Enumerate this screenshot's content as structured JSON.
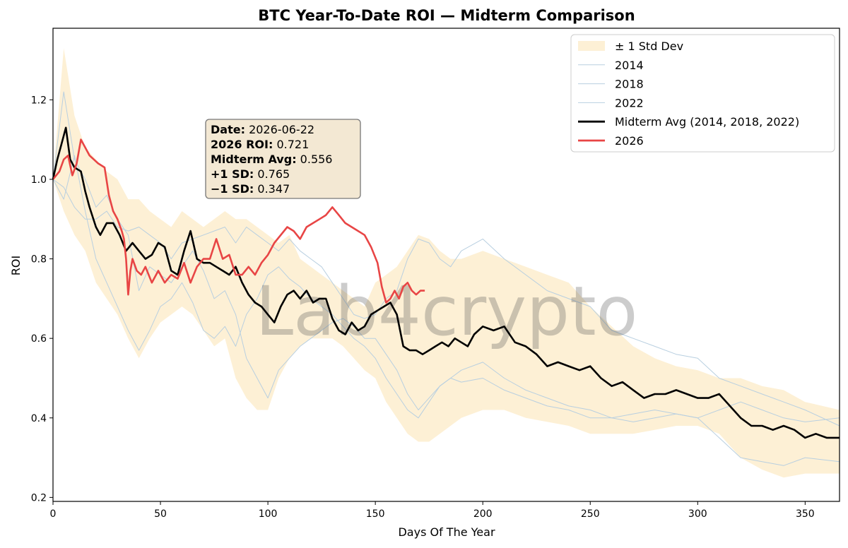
{
  "chart_data": {
    "type": "line",
    "title": "BTC Year-To-Date ROI — Midterm Comparison",
    "xlabel": "Days Of The Year",
    "ylabel": "ROI",
    "xlim": [
      0,
      366
    ],
    "ylim": [
      0.19,
      1.38
    ],
    "x_ticks": [
      0,
      50,
      100,
      150,
      200,
      250,
      300,
      350
    ],
    "y_ticks": [
      0.2,
      0.4,
      0.6,
      0.8,
      1.0,
      1.2
    ],
    "grid": false,
    "legend_position": "top-right",
    "watermark": "Lab4crypto",
    "colors": {
      "band": "#fdf0d5",
      "thin_lines": "#b8cfe0",
      "avg": "#000000",
      "current": "#e84545",
      "tooltip_bg": "#f3e8d3"
    },
    "legend": [
      {
        "label": "± 1 Std Dev",
        "kind": "band"
      },
      {
        "label": "2014",
        "kind": "thin"
      },
      {
        "label": "2018",
        "kind": "thin"
      },
      {
        "label": "2022",
        "kind": "thin"
      },
      {
        "label": "Midterm Avg (2014, 2018, 2022)",
        "kind": "avg"
      },
      {
        "label": "2026",
        "kind": "current"
      }
    ],
    "tooltip": [
      {
        "key": "Date",
        "value": "2026-06-22"
      },
      {
        "key": "2026 ROI",
        "value": "0.721"
      },
      {
        "key": "Midterm Avg",
        "value": "0.556"
      },
      {
        "key": "+1 SD",
        "value": "0.765"
      },
      {
        "key": "−1 SD",
        "value": "0.347"
      }
    ],
    "series": [
      {
        "name": "Midterm Avg (2014, 2018, 2022)",
        "x": [
          0,
          2,
          4,
          6,
          8,
          10,
          13,
          15,
          17,
          20,
          22,
          25,
          28,
          31,
          34,
          37,
          40,
          43,
          46,
          49,
          52,
          55,
          58,
          61,
          64,
          67,
          70,
          73,
          76,
          79,
          82,
          85,
          88,
          91,
          94,
          97,
          100,
          103,
          106,
          109,
          112,
          115,
          118,
          121,
          124,
          127,
          130,
          133,
          136,
          139,
          142,
          145,
          148,
          151,
          154,
          157,
          160,
          163,
          166,
          169,
          172,
          175,
          178,
          181,
          184,
          187,
          190,
          193,
          196,
          200,
          205,
          210,
          215,
          220,
          225,
          230,
          235,
          240,
          245,
          250,
          255,
          260,
          265,
          270,
          275,
          280,
          285,
          290,
          295,
          300,
          305,
          310,
          315,
          320,
          325,
          330,
          335,
          340,
          345,
          350,
          355,
          360,
          366
        ],
        "y": [
          1.0,
          1.05,
          1.09,
          1.13,
          1.05,
          1.03,
          1.02,
          0.97,
          0.93,
          0.88,
          0.86,
          0.89,
          0.89,
          0.86,
          0.82,
          0.84,
          0.82,
          0.8,
          0.81,
          0.84,
          0.83,
          0.77,
          0.76,
          0.82,
          0.87,
          0.8,
          0.79,
          0.79,
          0.78,
          0.77,
          0.76,
          0.78,
          0.74,
          0.71,
          0.69,
          0.68,
          0.66,
          0.64,
          0.68,
          0.71,
          0.72,
          0.7,
          0.72,
          0.69,
          0.7,
          0.7,
          0.65,
          0.62,
          0.61,
          0.64,
          0.62,
          0.63,
          0.66,
          0.67,
          0.68,
          0.69,
          0.66,
          0.58,
          0.57,
          0.57,
          0.56,
          0.57,
          0.58,
          0.59,
          0.58,
          0.6,
          0.59,
          0.58,
          0.61,
          0.63,
          0.62,
          0.63,
          0.59,
          0.58,
          0.56,
          0.53,
          0.54,
          0.53,
          0.52,
          0.53,
          0.5,
          0.48,
          0.49,
          0.47,
          0.45,
          0.46,
          0.46,
          0.47,
          0.46,
          0.45,
          0.45,
          0.46,
          0.43,
          0.4,
          0.38,
          0.38,
          0.37,
          0.38,
          0.37,
          0.35,
          0.36,
          0.35,
          0.35
        ]
      },
      {
        "name": "2026",
        "x": [
          0,
          3,
          5,
          7,
          9,
          11,
          13,
          15,
          17,
          19,
          21,
          24,
          26,
          28,
          30,
          32,
          33,
          34,
          35,
          36,
          37,
          39,
          41,
          43,
          46,
          49,
          52,
          55,
          58,
          61,
          64,
          67,
          70,
          73,
          76,
          79,
          82,
          85,
          88,
          91,
          94,
          97,
          100,
          103,
          106,
          109,
          112,
          115,
          118,
          121,
          124,
          127,
          130,
          133,
          136,
          139,
          142,
          145,
          148,
          151,
          153,
          155,
          157,
          159,
          161,
          163,
          165,
          167,
          169,
          171,
          173
        ],
        "y": [
          1.0,
          1.02,
          1.05,
          1.06,
          1.01,
          1.04,
          1.1,
          1.08,
          1.06,
          1.05,
          1.04,
          1.03,
          0.96,
          0.92,
          0.9,
          0.87,
          0.85,
          0.8,
          0.71,
          0.77,
          0.8,
          0.77,
          0.76,
          0.78,
          0.74,
          0.77,
          0.74,
          0.76,
          0.75,
          0.79,
          0.74,
          0.78,
          0.8,
          0.8,
          0.85,
          0.8,
          0.81,
          0.76,
          0.76,
          0.78,
          0.76,
          0.79,
          0.81,
          0.84,
          0.86,
          0.88,
          0.87,
          0.85,
          0.88,
          0.89,
          0.9,
          0.91,
          0.93,
          0.91,
          0.89,
          0.88,
          0.87,
          0.86,
          0.83,
          0.79,
          0.73,
          0.69,
          0.7,
          0.72,
          0.7,
          0.73,
          0.74,
          0.72,
          0.71,
          0.72,
          0.72
        ]
      },
      {
        "name": "2014",
        "x": [
          0,
          5,
          10,
          15,
          20,
          25,
          30,
          35,
          40,
          45,
          50,
          55,
          60,
          65,
          70,
          75,
          80,
          85,
          90,
          95,
          100,
          105,
          110,
          115,
          120,
          125,
          130,
          135,
          140,
          145,
          150,
          155,
          160,
          165,
          170,
          175,
          180,
          185,
          190,
          200,
          210,
          220,
          230,
          240,
          250,
          260,
          270,
          280,
          290,
          300,
          310,
          320,
          330,
          340,
          350,
          366
        ],
        "y": [
          1.0,
          1.22,
          1.05,
          1.0,
          0.93,
          0.96,
          0.9,
          0.86,
          0.72,
          0.78,
          0.76,
          0.74,
          0.78,
          0.82,
          0.77,
          0.7,
          0.72,
          0.66,
          0.55,
          0.5,
          0.45,
          0.52,
          0.55,
          0.58,
          0.6,
          0.62,
          0.64,
          0.65,
          0.63,
          0.6,
          0.6,
          0.56,
          0.52,
          0.46,
          0.42,
          0.45,
          0.48,
          0.5,
          0.49,
          0.5,
          0.47,
          0.45,
          0.43,
          0.42,
          0.4,
          0.4,
          0.39,
          0.4,
          0.41,
          0.4,
          0.42,
          0.44,
          0.42,
          0.4,
          0.39,
          0.4
        ]
      },
      {
        "name": "2018",
        "x": [
          0,
          5,
          10,
          15,
          20,
          25,
          30,
          35,
          40,
          45,
          50,
          55,
          60,
          65,
          70,
          75,
          80,
          85,
          90,
          95,
          100,
          105,
          110,
          115,
          120,
          125,
          130,
          135,
          140,
          145,
          150,
          155,
          160,
          165,
          170,
          175,
          180,
          185,
          190,
          200,
          210,
          220,
          230,
          240,
          250,
          260,
          270,
          280,
          290,
          300,
          310,
          320,
          330,
          340,
          350,
          366
        ],
        "y": [
          1.0,
          0.95,
          1.06,
          0.92,
          0.8,
          0.74,
          0.68,
          0.62,
          0.57,
          0.62,
          0.68,
          0.7,
          0.74,
          0.69,
          0.62,
          0.6,
          0.63,
          0.58,
          0.66,
          0.7,
          0.76,
          0.78,
          0.75,
          0.73,
          0.7,
          0.68,
          0.66,
          0.63,
          0.6,
          0.58,
          0.55,
          0.5,
          0.46,
          0.42,
          0.4,
          0.44,
          0.48,
          0.5,
          0.52,
          0.54,
          0.5,
          0.47,
          0.45,
          0.43,
          0.42,
          0.4,
          0.41,
          0.42,
          0.41,
          0.4,
          0.35,
          0.3,
          0.29,
          0.28,
          0.3,
          0.29
        ]
      },
      {
        "name": "2022",
        "x": [
          0,
          5,
          10,
          15,
          20,
          25,
          30,
          35,
          40,
          45,
          50,
          55,
          60,
          65,
          70,
          75,
          80,
          85,
          90,
          95,
          100,
          105,
          110,
          115,
          120,
          125,
          130,
          135,
          140,
          145,
          150,
          155,
          160,
          165,
          170,
          175,
          180,
          185,
          190,
          200,
          210,
          220,
          230,
          240,
          250,
          260,
          270,
          280,
          290,
          300,
          310,
          320,
          330,
          340,
          350,
          366
        ],
        "y": [
          1.0,
          0.98,
          0.93,
          0.9,
          0.9,
          0.92,
          0.88,
          0.87,
          0.88,
          0.86,
          0.84,
          0.8,
          0.84,
          0.85,
          0.86,
          0.87,
          0.88,
          0.84,
          0.88,
          0.86,
          0.84,
          0.82,
          0.85,
          0.82,
          0.8,
          0.78,
          0.74,
          0.7,
          0.66,
          0.65,
          0.66,
          0.7,
          0.72,
          0.8,
          0.85,
          0.84,
          0.8,
          0.78,
          0.82,
          0.85,
          0.8,
          0.76,
          0.72,
          0.7,
          0.68,
          0.62,
          0.6,
          0.58,
          0.56,
          0.55,
          0.5,
          0.48,
          0.46,
          0.44,
          0.42,
          0.38
        ]
      }
    ],
    "band": {
      "x": [
        0,
        5,
        10,
        15,
        20,
        25,
        30,
        35,
        40,
        45,
        50,
        55,
        60,
        65,
        70,
        75,
        80,
        85,
        90,
        95,
        100,
        105,
        110,
        115,
        120,
        125,
        130,
        135,
        140,
        145,
        150,
        155,
        160,
        165,
        170,
        175,
        180,
        185,
        190,
        200,
        210,
        220,
        230,
        240,
        250,
        260,
        270,
        280,
        290,
        300,
        310,
        320,
        330,
        340,
        350,
        366
      ],
      "upper": [
        1.0,
        1.33,
        1.16,
        1.08,
        1.05,
        1.02,
        1.0,
        0.95,
        0.95,
        0.92,
        0.9,
        0.88,
        0.92,
        0.9,
        0.88,
        0.9,
        0.92,
        0.9,
        0.9,
        0.88,
        0.86,
        0.84,
        0.86,
        0.8,
        0.78,
        0.76,
        0.74,
        0.72,
        0.7,
        0.68,
        0.74,
        0.76,
        0.78,
        0.82,
        0.86,
        0.85,
        0.82,
        0.8,
        0.8,
        0.82,
        0.8,
        0.78,
        0.76,
        0.74,
        0.68,
        0.63,
        0.58,
        0.55,
        0.53,
        0.52,
        0.5,
        0.5,
        0.48,
        0.47,
        0.44,
        0.42
      ],
      "lower": [
        1.0,
        0.92,
        0.86,
        0.82,
        0.74,
        0.7,
        0.66,
        0.6,
        0.55,
        0.6,
        0.64,
        0.66,
        0.68,
        0.66,
        0.62,
        0.58,
        0.6,
        0.5,
        0.45,
        0.42,
        0.42,
        0.5,
        0.55,
        0.58,
        0.6,
        0.6,
        0.6,
        0.58,
        0.55,
        0.52,
        0.5,
        0.44,
        0.4,
        0.36,
        0.34,
        0.34,
        0.36,
        0.38,
        0.4,
        0.42,
        0.42,
        0.4,
        0.39,
        0.38,
        0.36,
        0.36,
        0.36,
        0.37,
        0.38,
        0.38,
        0.36,
        0.3,
        0.27,
        0.25,
        0.26,
        0.26
      ]
    }
  }
}
